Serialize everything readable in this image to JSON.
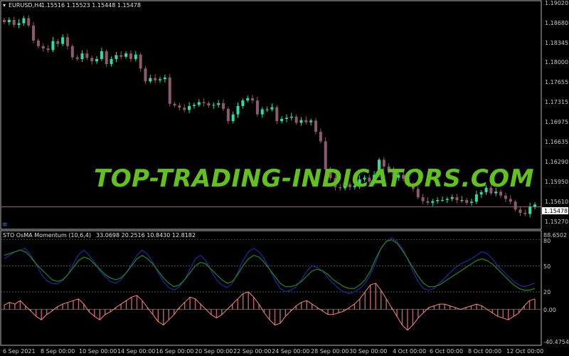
{
  "colors": {
    "background": "#000000",
    "grid_text": "#c8c8c8",
    "bull": "#26e0a6",
    "bear": "#8a5a6e",
    "price_line": "#a06060",
    "sto_fast": "#1e2aa0",
    "sto_slow": "#1f8a1f",
    "osma_hist": "#e0708a",
    "osma_line": "#f08a70",
    "watermark": "#62c21c"
  },
  "main_chart": {
    "symbol_label": "EURUSD,H4",
    "ohlc_text": "1.15516 1.15523 1.15448 1.15478",
    "price_ticks": [
      "1.19020",
      "1.18680",
      "1.18345",
      "1.18000",
      "1.17655",
      "1.17315",
      "1.16975",
      "1.16635",
      "1.16290",
      "1.15950",
      "1.15610",
      "1.15270"
    ],
    "current_price": "1.15478",
    "watermark": "TOP-TRADING-INDICATORS.COM",
    "ylim": [
      1.1509,
      1.1915
    ]
  },
  "indicator": {
    "header_label": "STO OsMA Momentum (10,6,4)",
    "values_text": "33.0698 20.2516 10.8430 12.8182",
    "axis_ticks": [
      "88.6502",
      "80",
      "50",
      "20",
      "0.00",
      "-40.4754"
    ],
    "levels": [
      80,
      50,
      20,
      0
    ],
    "ylim": [
      -40.4754,
      88.6502
    ]
  },
  "time_axis": [
    "6 Sep 2021",
    "8 Sep 00:00",
    "10 Sep 00:00",
    "14 Sep 00:00",
    "16 Sep 00:00",
    "20 Sep 00:00",
    "22 Sep 00:00",
    "24 Sep 00:00",
    "28 Sep 00:00",
    "30 Sep 00:00",
    "4 Oct 00:00",
    "6 Oct 00:00",
    "8 Oct 00:00",
    "12 Oct 00:00"
  ],
  "chart_data": {
    "type": "line",
    "series": [
      {
        "values": [
          1.1878,
          1.1882,
          1.1873,
          1.1876,
          1.1885,
          1.1872,
          1.1845,
          1.1835,
          1.1831,
          1.1828,
          1.1844,
          1.1839,
          1.1851,
          1.1835,
          1.1815,
          1.1812,
          1.1822,
          1.1814,
          1.1808,
          1.1812,
          1.1826,
          1.1803,
          1.1812,
          1.1819,
          1.1816,
          1.1822,
          1.1812,
          1.182,
          1.1795,
          1.1772,
          1.1778,
          1.1774,
          1.1776,
          1.1779,
          1.1732,
          1.1729,
          1.1725,
          1.1721,
          1.1728,
          1.173,
          1.1735,
          1.1733,
          1.1729,
          1.173,
          1.1733,
          1.1723,
          1.1701,
          1.1713,
          1.1728,
          1.1738,
          1.1742,
          1.1738,
          1.1713,
          1.1722,
          1.1722,
          1.1726,
          1.1701,
          1.1705,
          1.1707,
          1.1709,
          1.1698,
          1.1703,
          1.1699,
          1.1702,
          1.1682,
          1.1665,
          1.1615,
          1.1599,
          1.1583,
          1.1581,
          1.1588,
          1.1583,
          1.1586,
          1.1597,
          1.16,
          1.1593,
          1.1605,
          1.1632,
          1.162,
          1.1612,
          1.16,
          1.1605,
          1.1598,
          1.1589,
          1.158,
          1.1565,
          1.1558,
          1.1555,
          1.1558,
          1.156,
          1.156,
          1.1562,
          1.1565,
          1.156,
          1.156,
          1.1555,
          1.1557,
          1.157,
          1.1574,
          1.1582,
          1.1572,
          1.1575,
          1.1568,
          1.1562,
          1.1557,
          1.1543,
          1.1537,
          1.1535,
          1.1548,
          1.1552
        ]
      },
      {
        "values": [
          58,
          62,
          66,
          68,
          70,
          62,
          52,
          40,
          33,
          30,
          29,
          33,
          40,
          52,
          63,
          68,
          62,
          54,
          44,
          38,
          32,
          30,
          34,
          42,
          52,
          62,
          68,
          63,
          54,
          42,
          32,
          25,
          22,
          26,
          34,
          46,
          58,
          62,
          56,
          44,
          34,
          28,
          25,
          30,
          42,
          56,
          66,
          70,
          66,
          58,
          46,
          34,
          24,
          20,
          22,
          26,
          34,
          44,
          50,
          48,
          44,
          36,
          30,
          24,
          20,
          18,
          20,
          24,
          30,
          40,
          54,
          70,
          78,
          82,
          78,
          70,
          58,
          44,
          32,
          24,
          22,
          24,
          30,
          36,
          42,
          48,
          52,
          55,
          58,
          62,
          66,
          64,
          58,
          50,
          44,
          38,
          32,
          28,
          26,
          28,
          30
        ]
      },
      {
        "values": [
          62,
          64,
          66,
          68,
          66,
          60,
          52,
          46,
          40,
          34,
          32,
          34,
          40,
          48,
          56,
          60,
          58,
          52,
          46,
          40,
          36,
          34,
          36,
          42,
          50,
          58,
          62,
          58,
          52,
          44,
          36,
          30,
          26,
          28,
          34,
          42,
          50,
          54,
          52,
          46,
          40,
          34,
          30,
          32,
          40,
          50,
          58,
          62,
          60,
          54,
          46,
          38,
          30,
          26,
          26,
          28,
          32,
          38,
          44,
          46,
          44,
          40,
          34,
          30,
          26,
          24,
          24,
          28,
          34,
          44,
          58,
          70,
          78,
          80,
          76,
          68,
          58,
          48,
          38,
          30,
          26,
          26,
          28,
          32,
          36,
          40,
          44,
          48,
          52,
          56,
          58,
          56,
          52,
          46,
          40,
          34,
          28,
          24,
          22,
          22,
          24
        ]
      },
      {
        "values": [
          5,
          8,
          6,
          10,
          4,
          -2,
          -8,
          -12,
          -6,
          -2,
          3,
          6,
          8,
          10,
          12,
          6,
          -3,
          -8,
          -12,
          -6,
          -3,
          2,
          6,
          10,
          14,
          16,
          10,
          2,
          -6,
          -14,
          -18,
          -12,
          -6,
          2,
          8,
          14,
          12,
          6,
          0,
          -6,
          -10,
          -6,
          0,
          6,
          12,
          18,
          20,
          14,
          6,
          -4,
          -12,
          -18,
          -16,
          -8,
          -2,
          4,
          8,
          10,
          6,
          2,
          -2,
          -6,
          -6,
          -4,
          -2,
          2,
          6,
          12,
          20,
          28,
          30,
          22,
          12,
          2,
          -8,
          -18,
          -24,
          -18,
          -10,
          -4,
          2,
          4,
          6,
          6,
          4,
          2,
          0,
          2,
          4,
          6,
          4,
          0,
          -4,
          -8,
          -10,
          -12,
          -8,
          -4,
          4,
          10,
          12
        ]
      }
    ]
  }
}
